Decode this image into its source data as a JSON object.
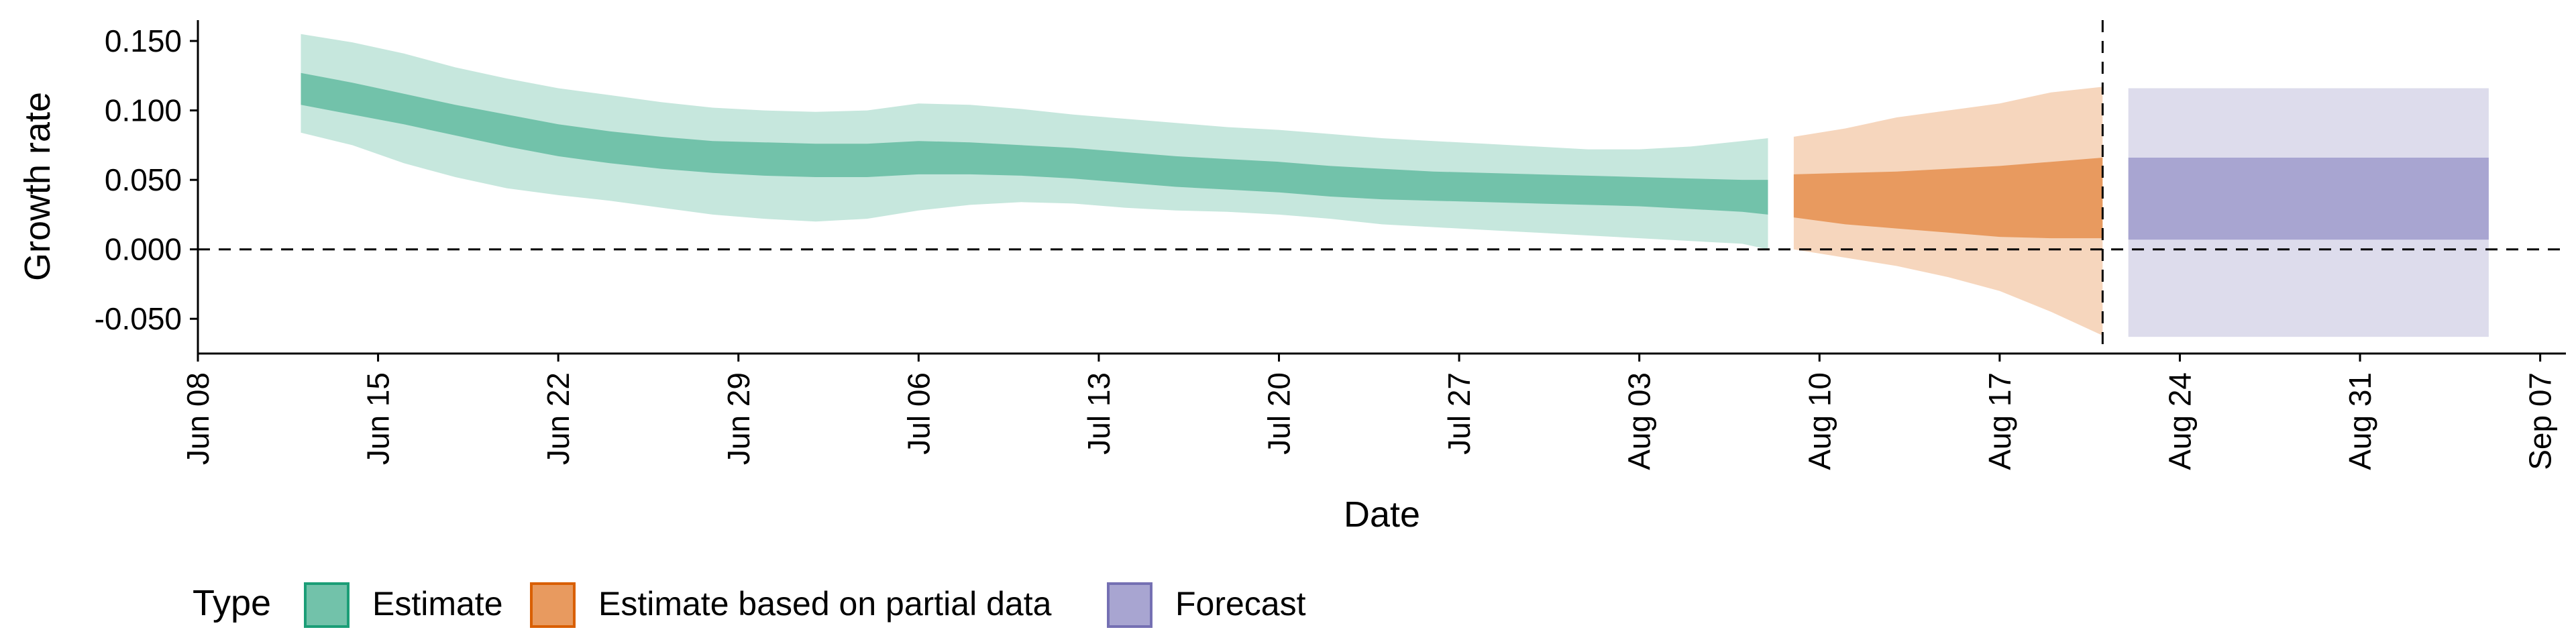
{
  "chart_data": {
    "type": "area",
    "title": "",
    "xlabel": "Date",
    "ylabel": "Growth rate",
    "xlim": [
      "2020-06-08",
      "2020-09-08"
    ],
    "ylim": [
      -0.075,
      0.165
    ],
    "x_ticks": [
      "2020-06-08",
      "2020-06-15",
      "2020-06-22",
      "2020-06-29",
      "2020-07-06",
      "2020-07-13",
      "2020-07-20",
      "2020-07-27",
      "2020-08-03",
      "2020-08-10",
      "2020-08-17",
      "2020-08-24",
      "2020-08-31",
      "2020-09-07"
    ],
    "x_tick_labels": [
      "Jun 08",
      "Jun 15",
      "Jun 22",
      "Jun 29",
      "Jul 06",
      "Jul 13",
      "Jul 20",
      "Jul 27",
      "Aug 03",
      "Aug 10",
      "Aug 17",
      "Aug 24",
      "Aug 31",
      "Sep 07"
    ],
    "y_ticks": [
      -0.05,
      0.0,
      0.05,
      0.1,
      0.15
    ],
    "y_tick_labels": [
      "-0.050",
      "0.000",
      "0.050",
      "0.100",
      "0.150"
    ],
    "grid": false,
    "reference_lines": [
      {
        "orientation": "horizontal",
        "value": 0.0,
        "style": "dashed"
      },
      {
        "orientation": "vertical",
        "value": "2020-08-21",
        "style": "dashed"
      }
    ],
    "legend": {
      "title": "Type",
      "position": "bottom-left",
      "entries": [
        "Estimate",
        "Estimate based on partial data",
        "Forecast"
      ]
    },
    "series": [
      {
        "name": "Estimate",
        "color": "#1b9e77",
        "inner_fill": "#72c2aa",
        "outer_fill": "#c6e7dd",
        "x": [
          "2020-06-12",
          "2020-06-14",
          "2020-06-16",
          "2020-06-18",
          "2020-06-20",
          "2020-06-22",
          "2020-06-24",
          "2020-06-26",
          "2020-06-28",
          "2020-06-30",
          "2020-07-02",
          "2020-07-04",
          "2020-07-06",
          "2020-07-08",
          "2020-07-10",
          "2020-07-12",
          "2020-07-14",
          "2020-07-16",
          "2020-07-18",
          "2020-07-20",
          "2020-07-22",
          "2020-07-24",
          "2020-07-26",
          "2020-07-28",
          "2020-07-30",
          "2020-08-01",
          "2020-08-03",
          "2020-08-05",
          "2020-08-07",
          "2020-08-08"
        ],
        "lower90": [
          0.084,
          0.075,
          0.062,
          0.052,
          0.044,
          0.039,
          0.035,
          0.03,
          0.025,
          0.022,
          0.02,
          0.022,
          0.028,
          0.032,
          0.034,
          0.033,
          0.03,
          0.028,
          0.027,
          0.025,
          0.022,
          0.018,
          0.016,
          0.014,
          0.012,
          0.01,
          0.008,
          0.006,
          0.004,
          0.0
        ],
        "lower50": [
          0.104,
          0.097,
          0.09,
          0.082,
          0.074,
          0.067,
          0.062,
          0.058,
          0.055,
          0.053,
          0.052,
          0.052,
          0.054,
          0.054,
          0.053,
          0.051,
          0.048,
          0.045,
          0.043,
          0.041,
          0.038,
          0.036,
          0.035,
          0.034,
          0.033,
          0.032,
          0.031,
          0.029,
          0.027,
          0.025
        ],
        "upper50": [
          0.127,
          0.12,
          0.112,
          0.104,
          0.097,
          0.09,
          0.085,
          0.081,
          0.078,
          0.077,
          0.076,
          0.076,
          0.078,
          0.077,
          0.075,
          0.073,
          0.07,
          0.067,
          0.065,
          0.063,
          0.06,
          0.058,
          0.056,
          0.055,
          0.054,
          0.053,
          0.052,
          0.051,
          0.05,
          0.05
        ],
        "upper90": [
          0.155,
          0.149,
          0.141,
          0.131,
          0.123,
          0.116,
          0.111,
          0.106,
          0.102,
          0.1,
          0.099,
          0.1,
          0.105,
          0.104,
          0.101,
          0.097,
          0.094,
          0.091,
          0.088,
          0.086,
          0.083,
          0.08,
          0.078,
          0.076,
          0.074,
          0.072,
          0.072,
          0.074,
          0.078,
          0.08
        ]
      },
      {
        "name": "Estimate based on partial data",
        "color": "#d95f02",
        "inner_fill": "#e89a5f",
        "outer_fill": "#f6d6bd",
        "x": [
          "2020-08-09",
          "2020-08-11",
          "2020-08-13",
          "2020-08-15",
          "2020-08-17",
          "2020-08-19",
          "2020-08-21"
        ],
        "lower90": [
          0.0,
          -0.006,
          -0.012,
          -0.02,
          -0.03,
          -0.045,
          -0.062
        ],
        "lower50": [
          0.023,
          0.018,
          0.015,
          0.012,
          0.009,
          0.008,
          0.008
        ],
        "upper50": [
          0.054,
          0.055,
          0.056,
          0.058,
          0.06,
          0.063,
          0.066
        ],
        "upper90": [
          0.081,
          0.087,
          0.095,
          0.1,
          0.105,
          0.113,
          0.117
        ]
      },
      {
        "name": "Forecast",
        "color": "#7570b3",
        "inner_fill": "#a8a5d1",
        "outer_fill": "#dddcec",
        "x": [
          "2020-08-22",
          "2020-09-05"
        ],
        "lower90": [
          -0.063,
          -0.063
        ],
        "lower50": [
          0.007,
          0.007
        ],
        "upper50": [
          0.066,
          0.066
        ],
        "upper90": [
          0.116,
          0.116
        ]
      }
    ]
  }
}
